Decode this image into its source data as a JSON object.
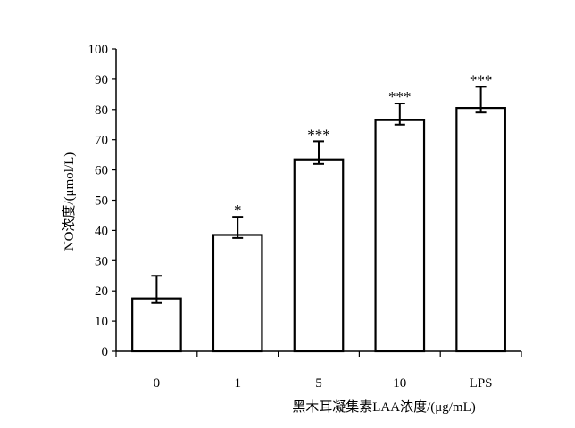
{
  "chart_data": {
    "type": "bar",
    "categories": [
      "0",
      "1",
      "5",
      "10",
      "LPS"
    ],
    "values": [
      17.5,
      38.5,
      63.5,
      76.5,
      80.5
    ],
    "error_upper": [
      25,
      44.5,
      69.5,
      82,
      87.5
    ],
    "error_lower": [
      16,
      37.5,
      62,
      75,
      79
    ],
    "significance": [
      "",
      "*",
      "***",
      "***",
      "***"
    ],
    "ylabel": "NO浓度/(μmol/L)",
    "xlabel": "黑木耳凝集素LAA浓度/(μg/mL)",
    "ylim": [
      0,
      100
    ],
    "yticks": [
      0,
      10,
      20,
      30,
      40,
      50,
      60,
      70,
      80,
      90,
      100
    ],
    "grid": false,
    "bar_fill": "#ffffff",
    "bar_stroke": "#000000"
  }
}
